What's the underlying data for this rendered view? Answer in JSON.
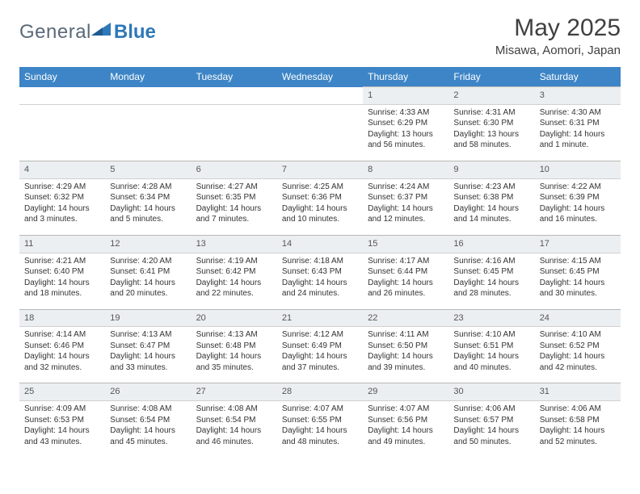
{
  "logo": {
    "text1": "General",
    "text2": "Blue",
    "icon_color": "#2f78b8"
  },
  "title": "May 2025",
  "location": "Misawa, Aomori, Japan",
  "colors": {
    "header_bg": "#3d85c6",
    "header_text": "#ffffff",
    "daynum_bg": "#eceff1",
    "border": "#d0d0d0",
    "text": "#333333"
  },
  "day_headers": [
    "Sunday",
    "Monday",
    "Tuesday",
    "Wednesday",
    "Thursday",
    "Friday",
    "Saturday"
  ],
  "weeks": [
    [
      null,
      null,
      null,
      null,
      {
        "n": "1",
        "sr": "4:33 AM",
        "ss": "6:29 PM",
        "dl": "13 hours and 56 minutes."
      },
      {
        "n": "2",
        "sr": "4:31 AM",
        "ss": "6:30 PM",
        "dl": "13 hours and 58 minutes."
      },
      {
        "n": "3",
        "sr": "4:30 AM",
        "ss": "6:31 PM",
        "dl": "14 hours and 1 minute."
      }
    ],
    [
      {
        "n": "4",
        "sr": "4:29 AM",
        "ss": "6:32 PM",
        "dl": "14 hours and 3 minutes."
      },
      {
        "n": "5",
        "sr": "4:28 AM",
        "ss": "6:34 PM",
        "dl": "14 hours and 5 minutes."
      },
      {
        "n": "6",
        "sr": "4:27 AM",
        "ss": "6:35 PM",
        "dl": "14 hours and 7 minutes."
      },
      {
        "n": "7",
        "sr": "4:25 AM",
        "ss": "6:36 PM",
        "dl": "14 hours and 10 minutes."
      },
      {
        "n": "8",
        "sr": "4:24 AM",
        "ss": "6:37 PM",
        "dl": "14 hours and 12 minutes."
      },
      {
        "n": "9",
        "sr": "4:23 AM",
        "ss": "6:38 PM",
        "dl": "14 hours and 14 minutes."
      },
      {
        "n": "10",
        "sr": "4:22 AM",
        "ss": "6:39 PM",
        "dl": "14 hours and 16 minutes."
      }
    ],
    [
      {
        "n": "11",
        "sr": "4:21 AM",
        "ss": "6:40 PM",
        "dl": "14 hours and 18 minutes."
      },
      {
        "n": "12",
        "sr": "4:20 AM",
        "ss": "6:41 PM",
        "dl": "14 hours and 20 minutes."
      },
      {
        "n": "13",
        "sr": "4:19 AM",
        "ss": "6:42 PM",
        "dl": "14 hours and 22 minutes."
      },
      {
        "n": "14",
        "sr": "4:18 AM",
        "ss": "6:43 PM",
        "dl": "14 hours and 24 minutes."
      },
      {
        "n": "15",
        "sr": "4:17 AM",
        "ss": "6:44 PM",
        "dl": "14 hours and 26 minutes."
      },
      {
        "n": "16",
        "sr": "4:16 AM",
        "ss": "6:45 PM",
        "dl": "14 hours and 28 minutes."
      },
      {
        "n": "17",
        "sr": "4:15 AM",
        "ss": "6:45 PM",
        "dl": "14 hours and 30 minutes."
      }
    ],
    [
      {
        "n": "18",
        "sr": "4:14 AM",
        "ss": "6:46 PM",
        "dl": "14 hours and 32 minutes."
      },
      {
        "n": "19",
        "sr": "4:13 AM",
        "ss": "6:47 PM",
        "dl": "14 hours and 33 minutes."
      },
      {
        "n": "20",
        "sr": "4:13 AM",
        "ss": "6:48 PM",
        "dl": "14 hours and 35 minutes."
      },
      {
        "n": "21",
        "sr": "4:12 AM",
        "ss": "6:49 PM",
        "dl": "14 hours and 37 minutes."
      },
      {
        "n": "22",
        "sr": "4:11 AM",
        "ss": "6:50 PM",
        "dl": "14 hours and 39 minutes."
      },
      {
        "n": "23",
        "sr": "4:10 AM",
        "ss": "6:51 PM",
        "dl": "14 hours and 40 minutes."
      },
      {
        "n": "24",
        "sr": "4:10 AM",
        "ss": "6:52 PM",
        "dl": "14 hours and 42 minutes."
      }
    ],
    [
      {
        "n": "25",
        "sr": "4:09 AM",
        "ss": "6:53 PM",
        "dl": "14 hours and 43 minutes."
      },
      {
        "n": "26",
        "sr": "4:08 AM",
        "ss": "6:54 PM",
        "dl": "14 hours and 45 minutes."
      },
      {
        "n": "27",
        "sr": "4:08 AM",
        "ss": "6:54 PM",
        "dl": "14 hours and 46 minutes."
      },
      {
        "n": "28",
        "sr": "4:07 AM",
        "ss": "6:55 PM",
        "dl": "14 hours and 48 minutes."
      },
      {
        "n": "29",
        "sr": "4:07 AM",
        "ss": "6:56 PM",
        "dl": "14 hours and 49 minutes."
      },
      {
        "n": "30",
        "sr": "4:06 AM",
        "ss": "6:57 PM",
        "dl": "14 hours and 50 minutes."
      },
      {
        "n": "31",
        "sr": "4:06 AM",
        "ss": "6:58 PM",
        "dl": "14 hours and 52 minutes."
      }
    ]
  ],
  "labels": {
    "sunrise": "Sunrise: ",
    "sunset": "Sunset: ",
    "daylight": "Daylight: "
  }
}
